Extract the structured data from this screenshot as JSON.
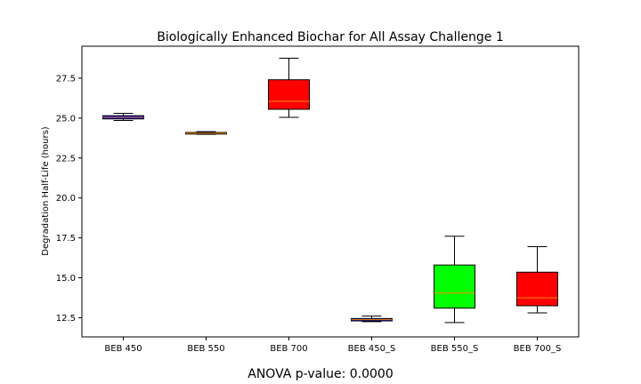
{
  "chart_data": {
    "type": "box",
    "title": "Biologically Enhanced Biochar for All Assay Challenge 1",
    "xlabel": "",
    "ylabel": "Degradation Half-Life (hours)",
    "ylim": [
      11.3,
      29.5
    ],
    "yticks": [
      12.5,
      15.0,
      17.5,
      20.0,
      22.5,
      25.0,
      27.5
    ],
    "ytick_labels": [
      "12.5",
      "15.0",
      "17.5",
      "20.0",
      "22.5",
      "25.0",
      "27.5"
    ],
    "categories": [
      "BEB 450",
      "BEB 550",
      "BEB 700",
      "BEB 450_S",
      "BEB 550_S",
      "BEB 700_S"
    ],
    "boxes": [
      {
        "whisker_low": 24.85,
        "q1": 24.95,
        "median": 25.05,
        "q3": 25.15,
        "whisker_high": 25.3
      },
      {
        "whisker_low": 23.98,
        "q1": 24.0,
        "median": 24.05,
        "q3": 24.1,
        "whisker_high": 24.15
      },
      {
        "whisker_low": 25.05,
        "q1": 25.55,
        "median": 26.05,
        "q3": 27.4,
        "whisker_high": 28.75
      },
      {
        "whisker_low": 12.25,
        "q1": 12.3,
        "median": 12.38,
        "q3": 12.45,
        "whisker_high": 12.6
      },
      {
        "whisker_low": 12.2,
        "q1": 13.1,
        "median": 14.05,
        "q3": 15.8,
        "whisker_high": 17.6
      },
      {
        "whisker_low": 12.8,
        "q1": 13.25,
        "median": 13.75,
        "q3": 15.35,
        "whisker_high": 16.95
      }
    ],
    "colors": [
      "#0000ff",
      "#00ff00",
      "#ff0000",
      "#0000ff",
      "#00ff00",
      "#ff0000"
    ],
    "median_color": "#ff8c00",
    "grid": false,
    "legend": "none"
  },
  "annotation": "ANOVA p-value: 0.0000"
}
